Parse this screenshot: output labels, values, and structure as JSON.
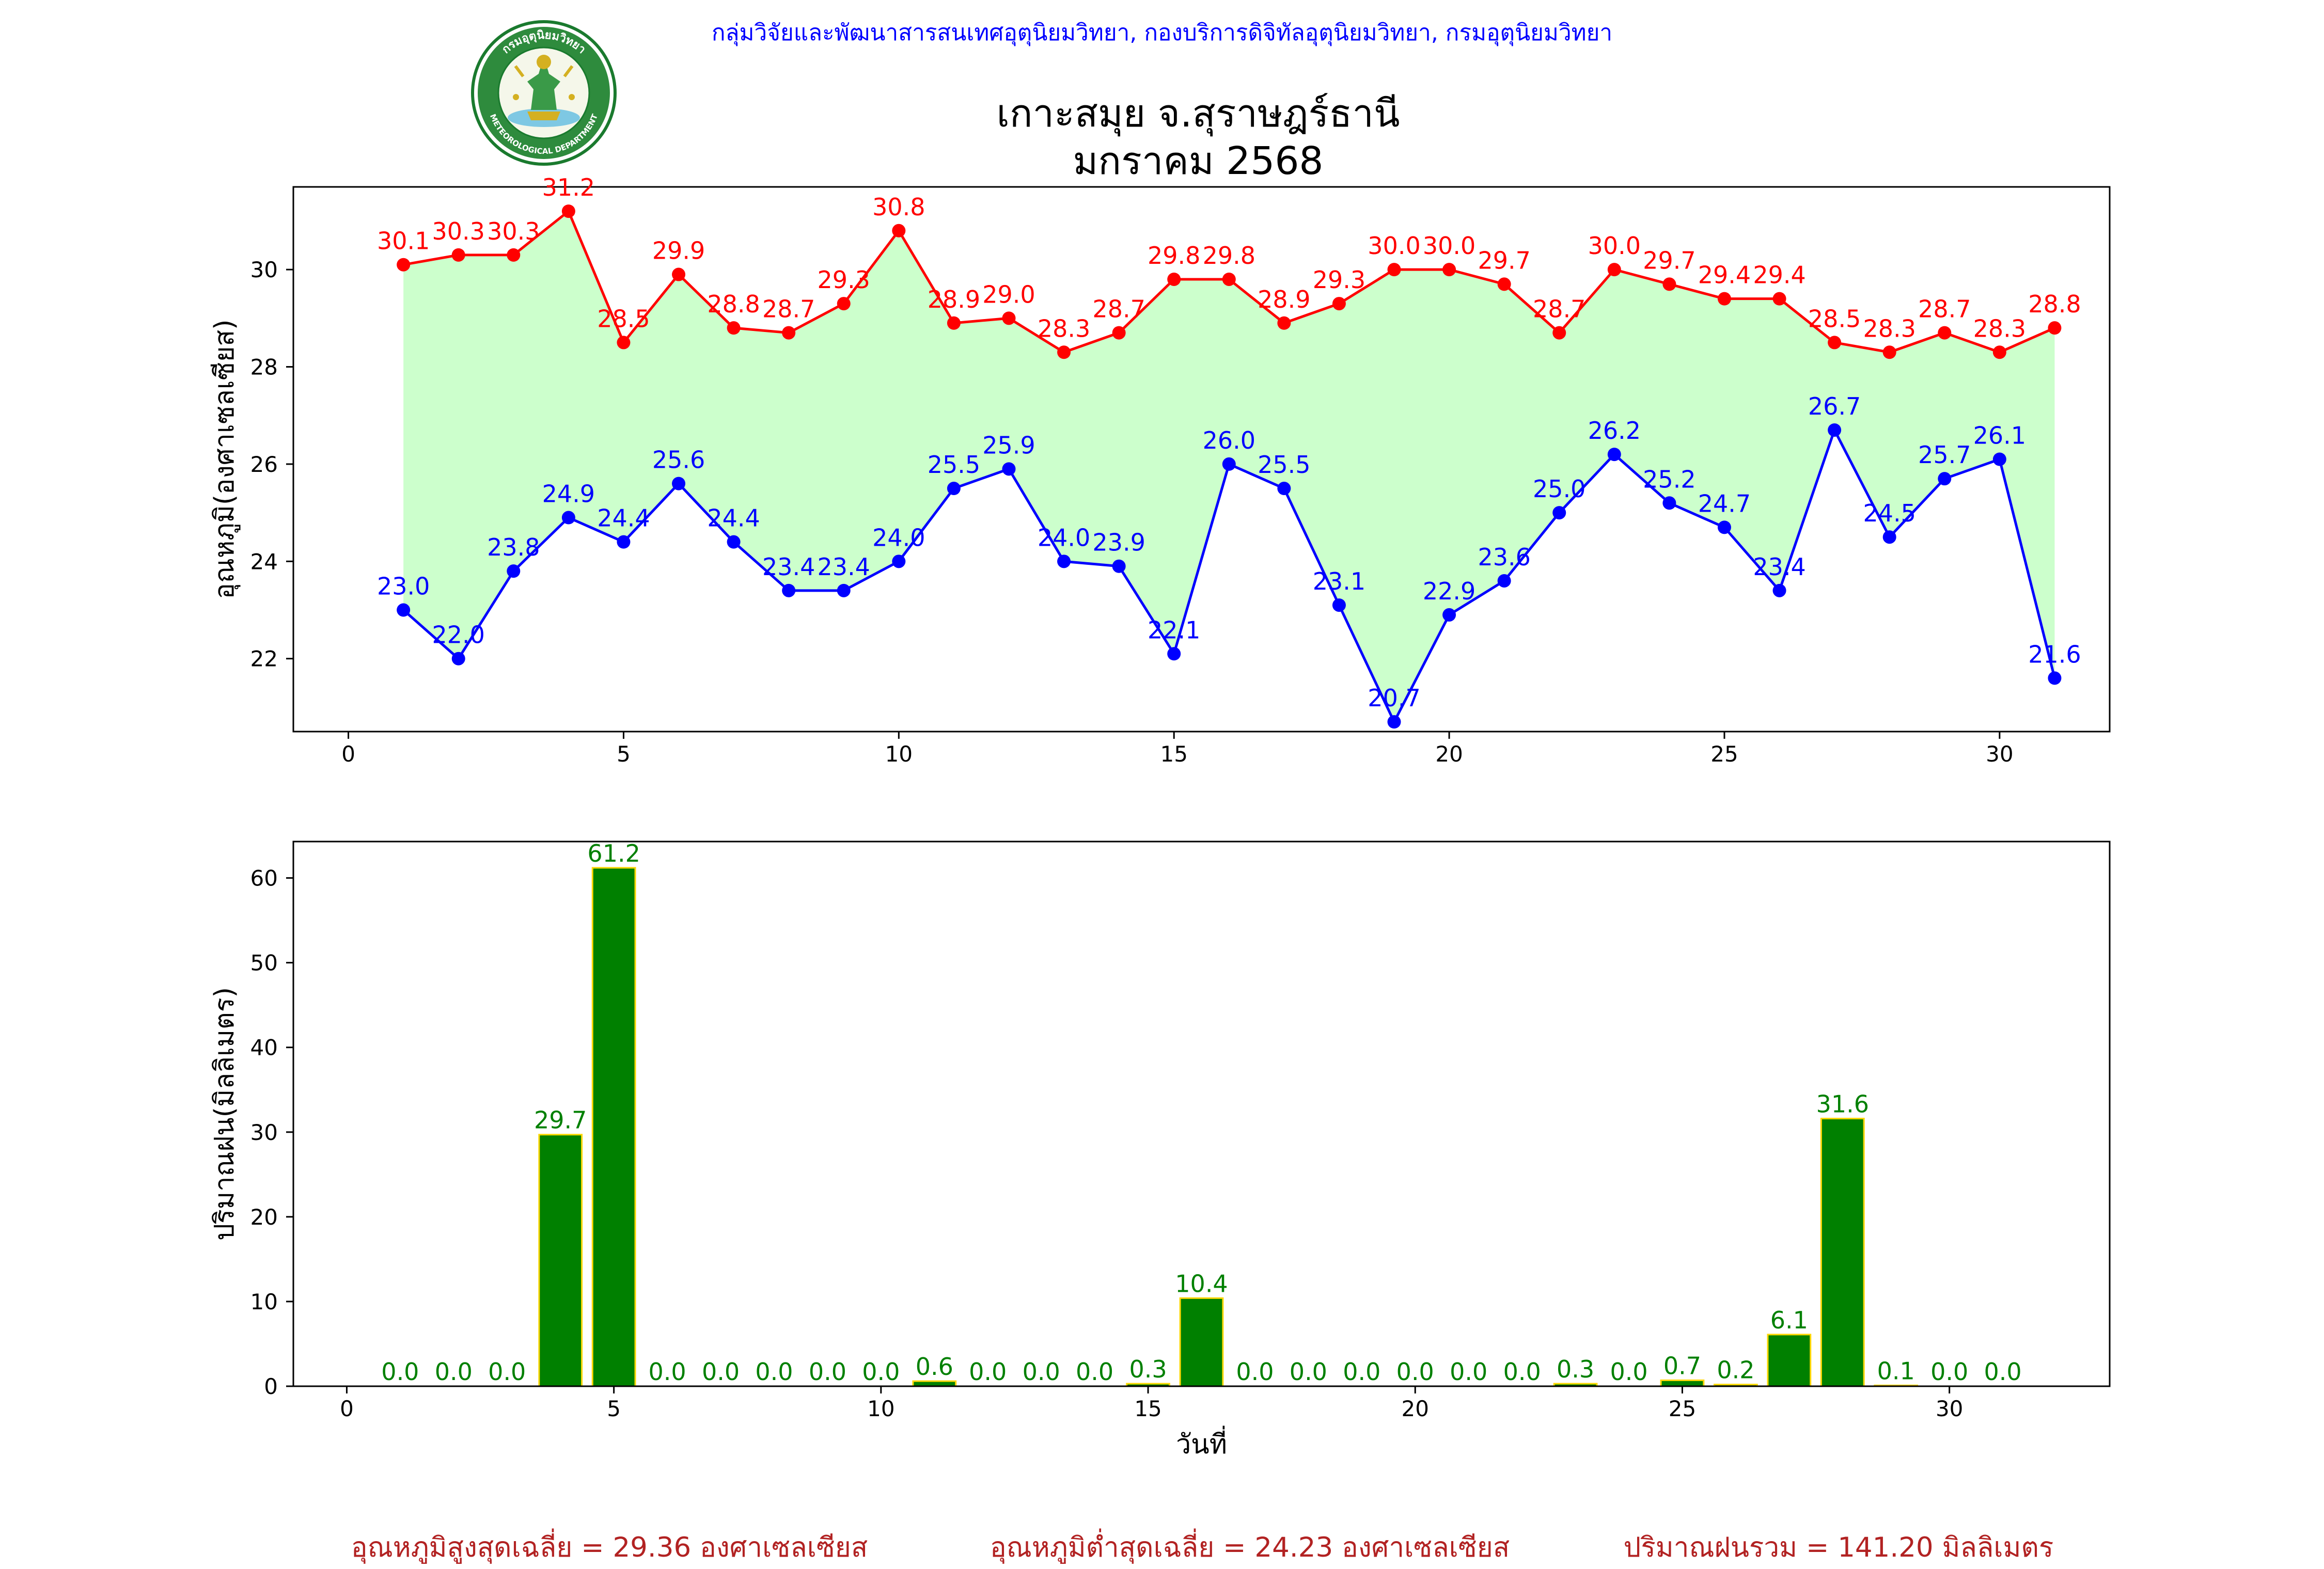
{
  "header": {
    "credit": "กลุ่มวิจัยและพัฒนาสารสนเทศอุตุนิยมวิทยา, กองบริการดิจิทัลอุตุนิยมวิทยา, กรมอุตุนิยมวิทยา",
    "title_line1": "เกาะสมุย จ.สุราษฎร์ธานี",
    "title_line2": "มกราคม 2568",
    "logo_text": "กรมอุตุนิยมวิทยา",
    "logo_text_en": "METEOROLOGICAL DEPARTMENT"
  },
  "chart_data": [
    {
      "type": "line",
      "title": "",
      "xlabel": "",
      "ylabel": "อุณหภูมิ(องศาเซลเซียส)",
      "xlim": [
        -1,
        32
      ],
      "ylim": [
        20.5,
        31.7
      ],
      "x_ticks": [
        0,
        5,
        10,
        15,
        20,
        25,
        30
      ],
      "y_ticks": [
        22,
        24,
        26,
        28,
        30
      ],
      "grid": false,
      "fill_between_series": true,
      "fill_color": "#ccffcc",
      "x": [
        1,
        2,
        3,
        4,
        5,
        6,
        7,
        8,
        9,
        10,
        11,
        12,
        13,
        14,
        15,
        16,
        17,
        18,
        19,
        20,
        21,
        22,
        23,
        24,
        25,
        26,
        27,
        28,
        29,
        30,
        31
      ],
      "series": [
        {
          "color": "#ff0000",
          "values": [
            30.1,
            30.3,
            30.3,
            31.2,
            28.5,
            29.9,
            28.8,
            28.7,
            29.3,
            30.8,
            28.9,
            29.0,
            28.3,
            28.7,
            29.8,
            29.8,
            28.9,
            29.3,
            30.0,
            30.0,
            29.7,
            28.7,
            30.0,
            29.7,
            29.4,
            29.4,
            28.5,
            28.3,
            28.7,
            28.3,
            28.8
          ]
        },
        {
          "color": "#0000ff",
          "values": [
            23.0,
            22.0,
            23.8,
            24.9,
            24.4,
            25.6,
            24.4,
            23.4,
            23.4,
            24.0,
            25.5,
            25.9,
            24.0,
            23.9,
            22.1,
            26.0,
            25.5,
            23.1,
            20.7,
            22.9,
            23.6,
            25.0,
            26.2,
            25.2,
            24.7,
            23.4,
            26.7,
            24.5,
            25.7,
            26.1,
            21.6
          ]
        }
      ]
    },
    {
      "type": "bar",
      "title": "",
      "xlabel": "วันที่",
      "ylabel": "ปริมาณฝน(มิลลิเมตร)",
      "xlim": [
        -1,
        33
      ],
      "ylim": [
        0,
        64.3
      ],
      "x_ticks": [
        0,
        5,
        10,
        15,
        20,
        25,
        30
      ],
      "y_ticks": [
        0,
        10,
        20,
        30,
        40,
        50,
        60
      ],
      "grid": false,
      "bar_color": "#008000",
      "bar_edge_color": "#ffd700",
      "label_color": "#008000",
      "x": [
        1,
        2,
        3,
        4,
        5,
        6,
        7,
        8,
        9,
        10,
        11,
        12,
        13,
        14,
        15,
        16,
        17,
        18,
        19,
        20,
        21,
        22,
        23,
        24,
        25,
        26,
        27,
        28,
        29,
        30,
        31
      ],
      "values": [
        0.0,
        0.0,
        0.0,
        29.7,
        61.2,
        0.0,
        0.0,
        0.0,
        0.0,
        0.0,
        0.6,
        0.0,
        0.0,
        0.0,
        0.3,
        10.4,
        0.0,
        0.0,
        0.0,
        0.0,
        0.0,
        0.0,
        0.3,
        0.0,
        0.7,
        0.2,
        6.1,
        31.6,
        0.1,
        0.0,
        0.0
      ]
    }
  ],
  "footer": {
    "avg_max": "อุณหภูมิสูงสุดเฉลี่ย = 29.36 องศาเซลเซียส",
    "avg_min": "อุณหภูมิต่ำสุดเฉลี่ย = 24.23 องศาเซลเซียส",
    "rain_total": "ปริมาณฝนรวม = 141.20 มิลลิเมตร"
  }
}
